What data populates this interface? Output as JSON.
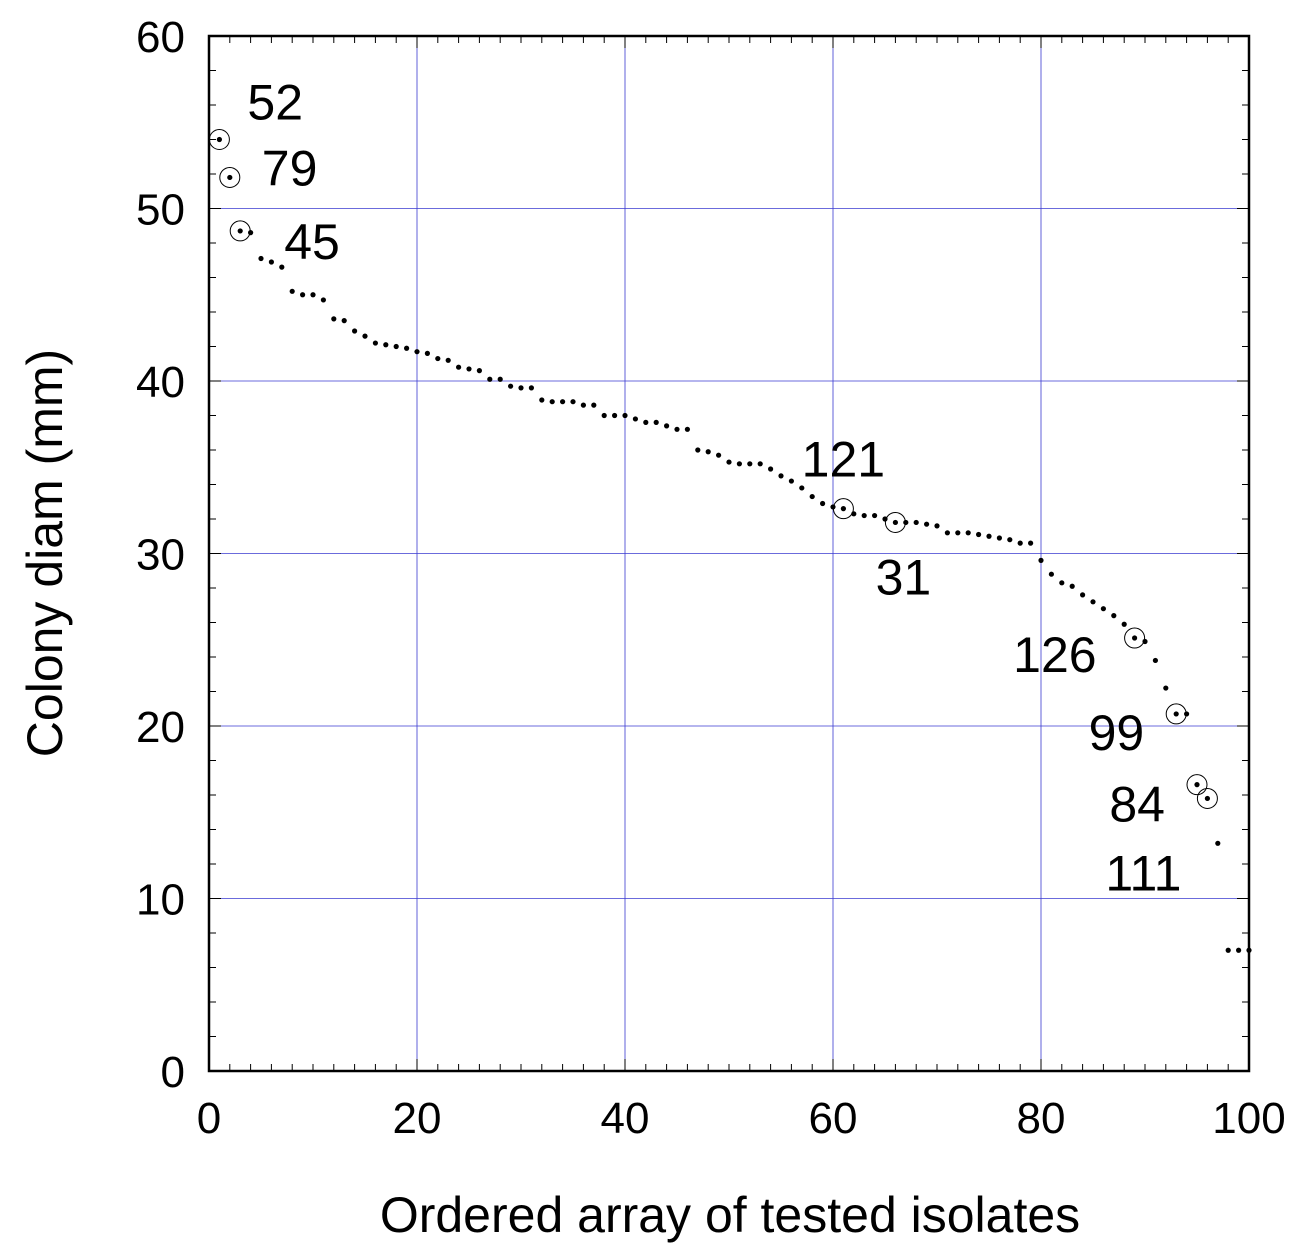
{
  "chart_data": {
    "type": "scatter",
    "xlabel": "Ordered array of tested isolates",
    "ylabel": "Colony diam (mm)",
    "xlim": [
      0,
      100
    ],
    "ylim": [
      0,
      60
    ],
    "xticks": [
      0,
      20,
      40,
      60,
      80,
      100
    ],
    "yticks": [
      0,
      10,
      20,
      30,
      40,
      50,
      60
    ],
    "grid": true,
    "grid_color": "#3a3ad0",
    "marker_color": "#000000",
    "points": [
      [
        1,
        54.0
      ],
      [
        2,
        51.8
      ],
      [
        3,
        48.7
      ],
      [
        4,
        48.6
      ],
      [
        5,
        47.1
      ],
      [
        6,
        46.9
      ],
      [
        7,
        46.6
      ],
      [
        8,
        45.2
      ],
      [
        9,
        45.0
      ],
      [
        10,
        45.0
      ],
      [
        11,
        44.7
      ],
      [
        12,
        43.6
      ],
      [
        13,
        43.5
      ],
      [
        14,
        42.9
      ],
      [
        15,
        42.6
      ],
      [
        16,
        42.2
      ],
      [
        17,
        42.1
      ],
      [
        18,
        42.0
      ],
      [
        19,
        41.9
      ],
      [
        20,
        41.7
      ],
      [
        21,
        41.6
      ],
      [
        22,
        41.3
      ],
      [
        23,
        41.2
      ],
      [
        24,
        40.8
      ],
      [
        25,
        40.7
      ],
      [
        26,
        40.6
      ],
      [
        27,
        40.1
      ],
      [
        28,
        40.1
      ],
      [
        29,
        39.7
      ],
      [
        30,
        39.6
      ],
      [
        31,
        39.6
      ],
      [
        32,
        38.9
      ],
      [
        33,
        38.8
      ],
      [
        34,
        38.8
      ],
      [
        35,
        38.8
      ],
      [
        36,
        38.6
      ],
      [
        37,
        38.6
      ],
      [
        38,
        38.0
      ],
      [
        39,
        38.0
      ],
      [
        40,
        38.0
      ],
      [
        41,
        37.8
      ],
      [
        42,
        37.6
      ],
      [
        43,
        37.6
      ],
      [
        44,
        37.4
      ],
      [
        45,
        37.2
      ],
      [
        46,
        37.2
      ],
      [
        47,
        36.0
      ],
      [
        48,
        35.9
      ],
      [
        49,
        35.7
      ],
      [
        50,
        35.3
      ],
      [
        51,
        35.2
      ],
      [
        52,
        35.2
      ],
      [
        53,
        35.2
      ],
      [
        54,
        34.9
      ],
      [
        55,
        34.5
      ],
      [
        56,
        34.2
      ],
      [
        57,
        33.8
      ],
      [
        58,
        33.3
      ],
      [
        59,
        32.9
      ],
      [
        60,
        32.7
      ],
      [
        61,
        32.6
      ],
      [
        62,
        32.3
      ],
      [
        63,
        32.2
      ],
      [
        64,
        32.2
      ],
      [
        65,
        32.0
      ],
      [
        66,
        31.8
      ],
      [
        67,
        31.8
      ],
      [
        68,
        31.8
      ],
      [
        69,
        31.7
      ],
      [
        70,
        31.6
      ],
      [
        71,
        31.2
      ],
      [
        72,
        31.2
      ],
      [
        73,
        31.2
      ],
      [
        74,
        31.1
      ],
      [
        75,
        31.0
      ],
      [
        76,
        30.9
      ],
      [
        77,
        30.8
      ],
      [
        78,
        30.6
      ],
      [
        79,
        30.6
      ],
      [
        80,
        29.6
      ],
      [
        81,
        28.8
      ],
      [
        82,
        28.3
      ],
      [
        83,
        28.1
      ],
      [
        84,
        27.6
      ],
      [
        85,
        27.2
      ],
      [
        86,
        26.8
      ],
      [
        87,
        26.4
      ],
      [
        88,
        25.9
      ],
      [
        89,
        25.1
      ],
      [
        90,
        24.9
      ],
      [
        91,
        23.8
      ],
      [
        92,
        22.2
      ],
      [
        93,
        20.7
      ],
      [
        94,
        20.7
      ],
      [
        95,
        16.6
      ],
      [
        96,
        15.8
      ],
      [
        97,
        13.2
      ],
      [
        98,
        7.0
      ],
      [
        99,
        7.0
      ],
      [
        100,
        7.0
      ]
    ],
    "highlighted": [
      {
        "label": "52",
        "x": 1,
        "y": 54.0
      },
      {
        "label": "79",
        "x": 2,
        "y": 51.8
      },
      {
        "label": "45",
        "x": 3,
        "y": 48.7
      },
      {
        "label": "121",
        "x": 61,
        "y": 32.6
      },
      {
        "label": "31",
        "x": 66,
        "y": 31.8
      },
      {
        "label": "126",
        "x": 89,
        "y": 25.1
      },
      {
        "label": "99",
        "x": 93,
        "y": 20.7
      },
      {
        "label": "84",
        "x": 95,
        "y": 16.6
      },
      {
        "label": "111",
        "x": 96,
        "y": 15.8
      }
    ]
  }
}
